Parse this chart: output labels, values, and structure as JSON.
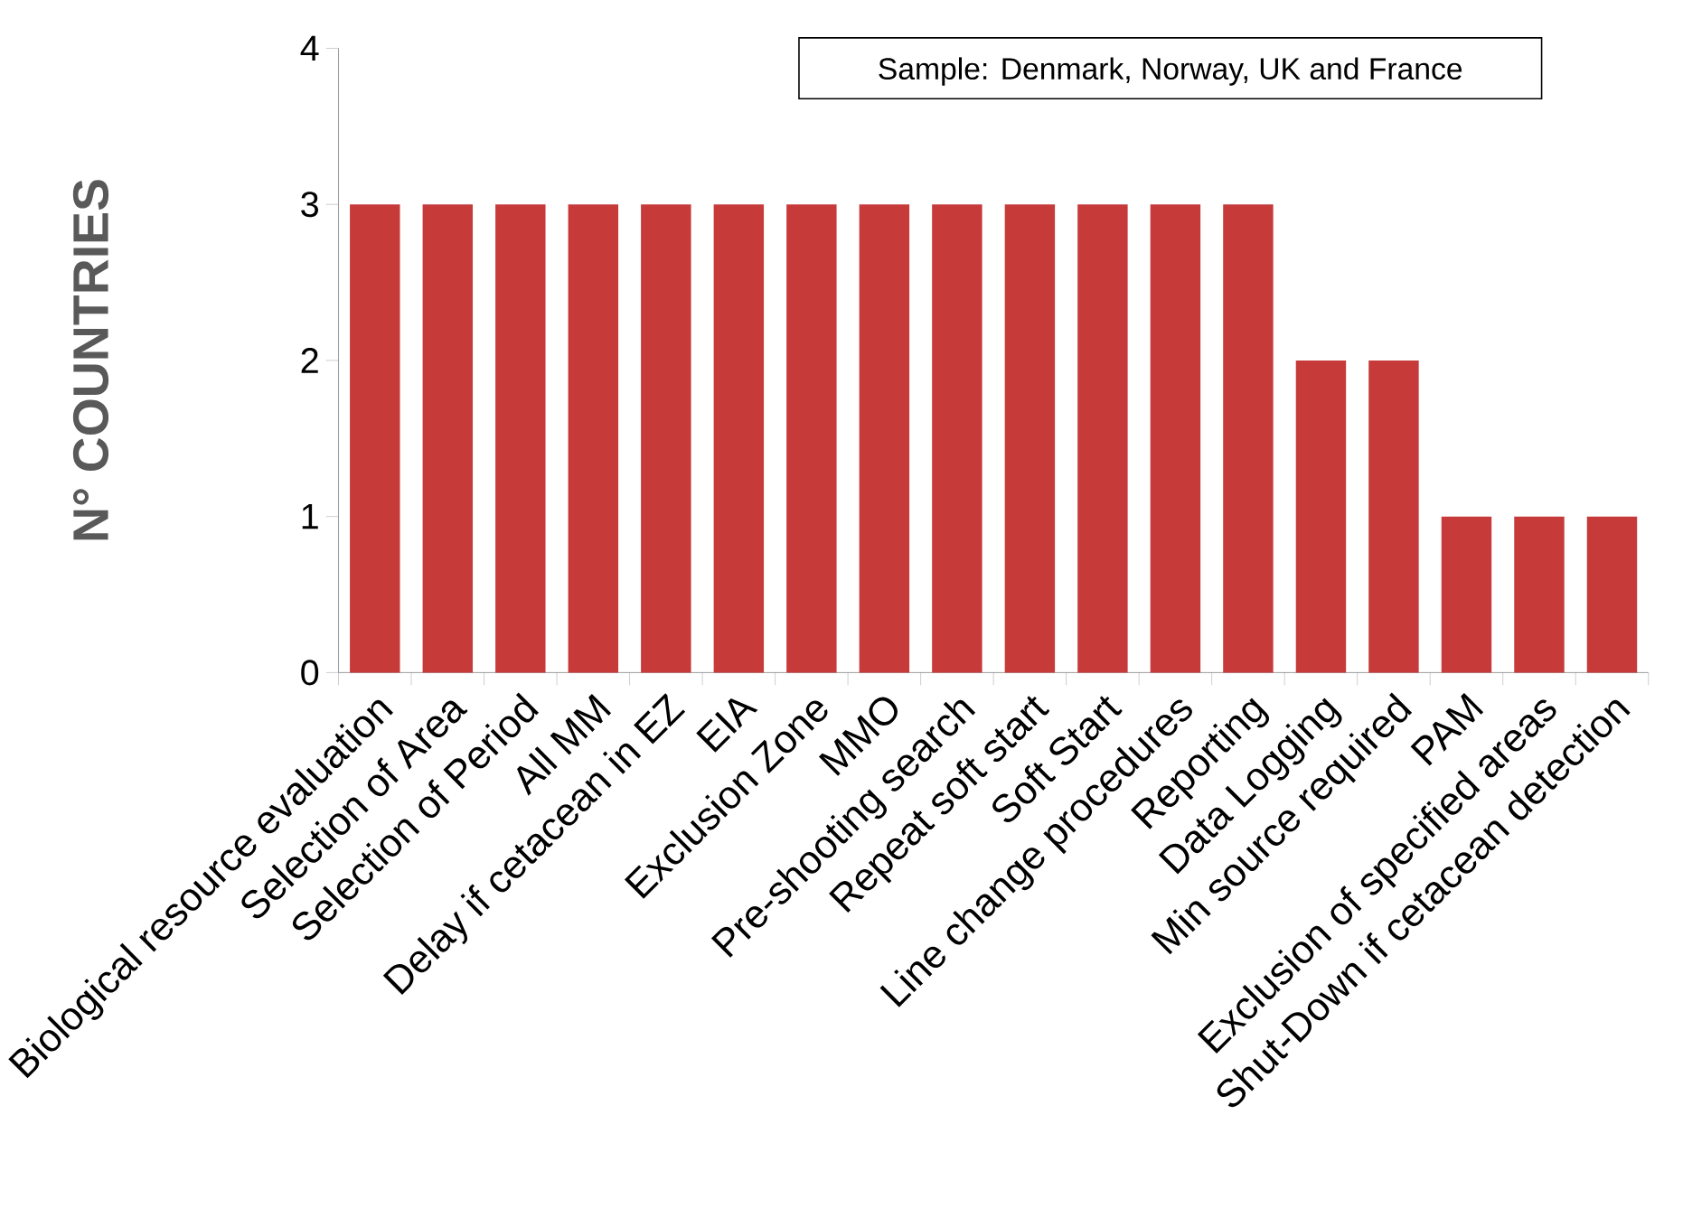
{
  "chart_data": {
    "type": "bar",
    "ylabel": "N° COUNTRIES",
    "categories": [
      "Biological resource evaluation",
      "Selection of Area",
      "Selection of Period",
      "All MM",
      "Delay if cetacean in EZ",
      "EIA",
      "Exclusion Zone",
      "MMO",
      "Pre-shooting search",
      "Repeat soft start",
      "Soft Start",
      "Line change procedures",
      "Reporting",
      "Data Logging",
      "Min source required",
      "PAM",
      "Exclusion of specified areas",
      "Shut-Down if cetacean detection"
    ],
    "values": [
      3,
      3,
      3,
      3,
      3,
      3,
      3,
      3,
      3,
      3,
      3,
      3,
      3,
      2,
      2,
      1,
      1,
      1
    ],
    "color": "#c73a3a",
    "ylim": [
      0,
      4
    ],
    "yticks": [
      0,
      1,
      2,
      3,
      4
    ],
    "grid": false,
    "annotations": [
      "Sample: Denmark, Norway, UK and France"
    ]
  }
}
